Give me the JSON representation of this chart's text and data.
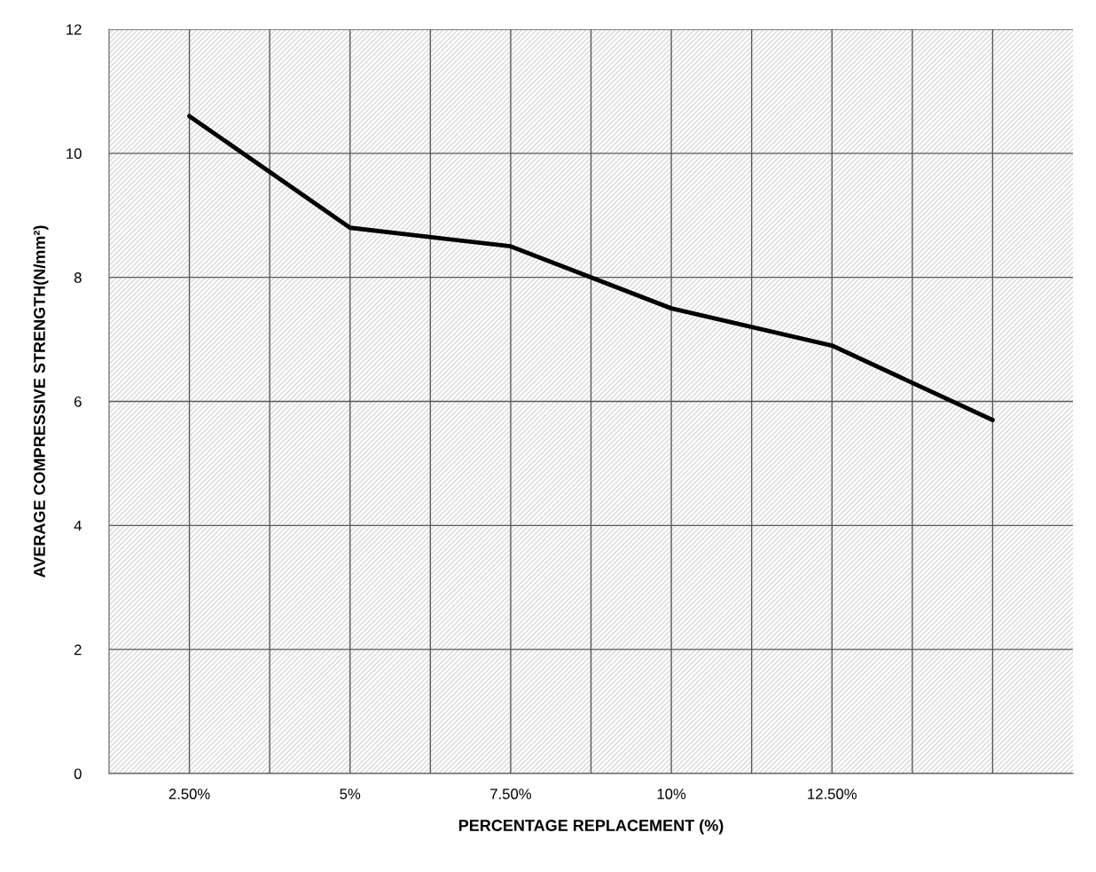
{
  "chart_data": {
    "type": "line",
    "xlabel": "PERCENTAGE REPLACEMENT (%)",
    "ylabel": "AVERAGE COMPRESSIVE STRENGTH(N/mm²)",
    "categories": [
      "2.50%",
      "5%",
      "7.50%",
      "10%",
      "12.50%",
      null
    ],
    "series": [
      {
        "color": "#000000",
        "values": [
          10.6,
          8.8,
          8.5,
          7.5,
          6.9,
          5.7
        ]
      }
    ],
    "ylim": [
      0,
      12
    ],
    "yticks": [
      0,
      2,
      4,
      6,
      8,
      10,
      12
    ],
    "grid": true,
    "marker": "none",
    "line_style": "solid"
  }
}
